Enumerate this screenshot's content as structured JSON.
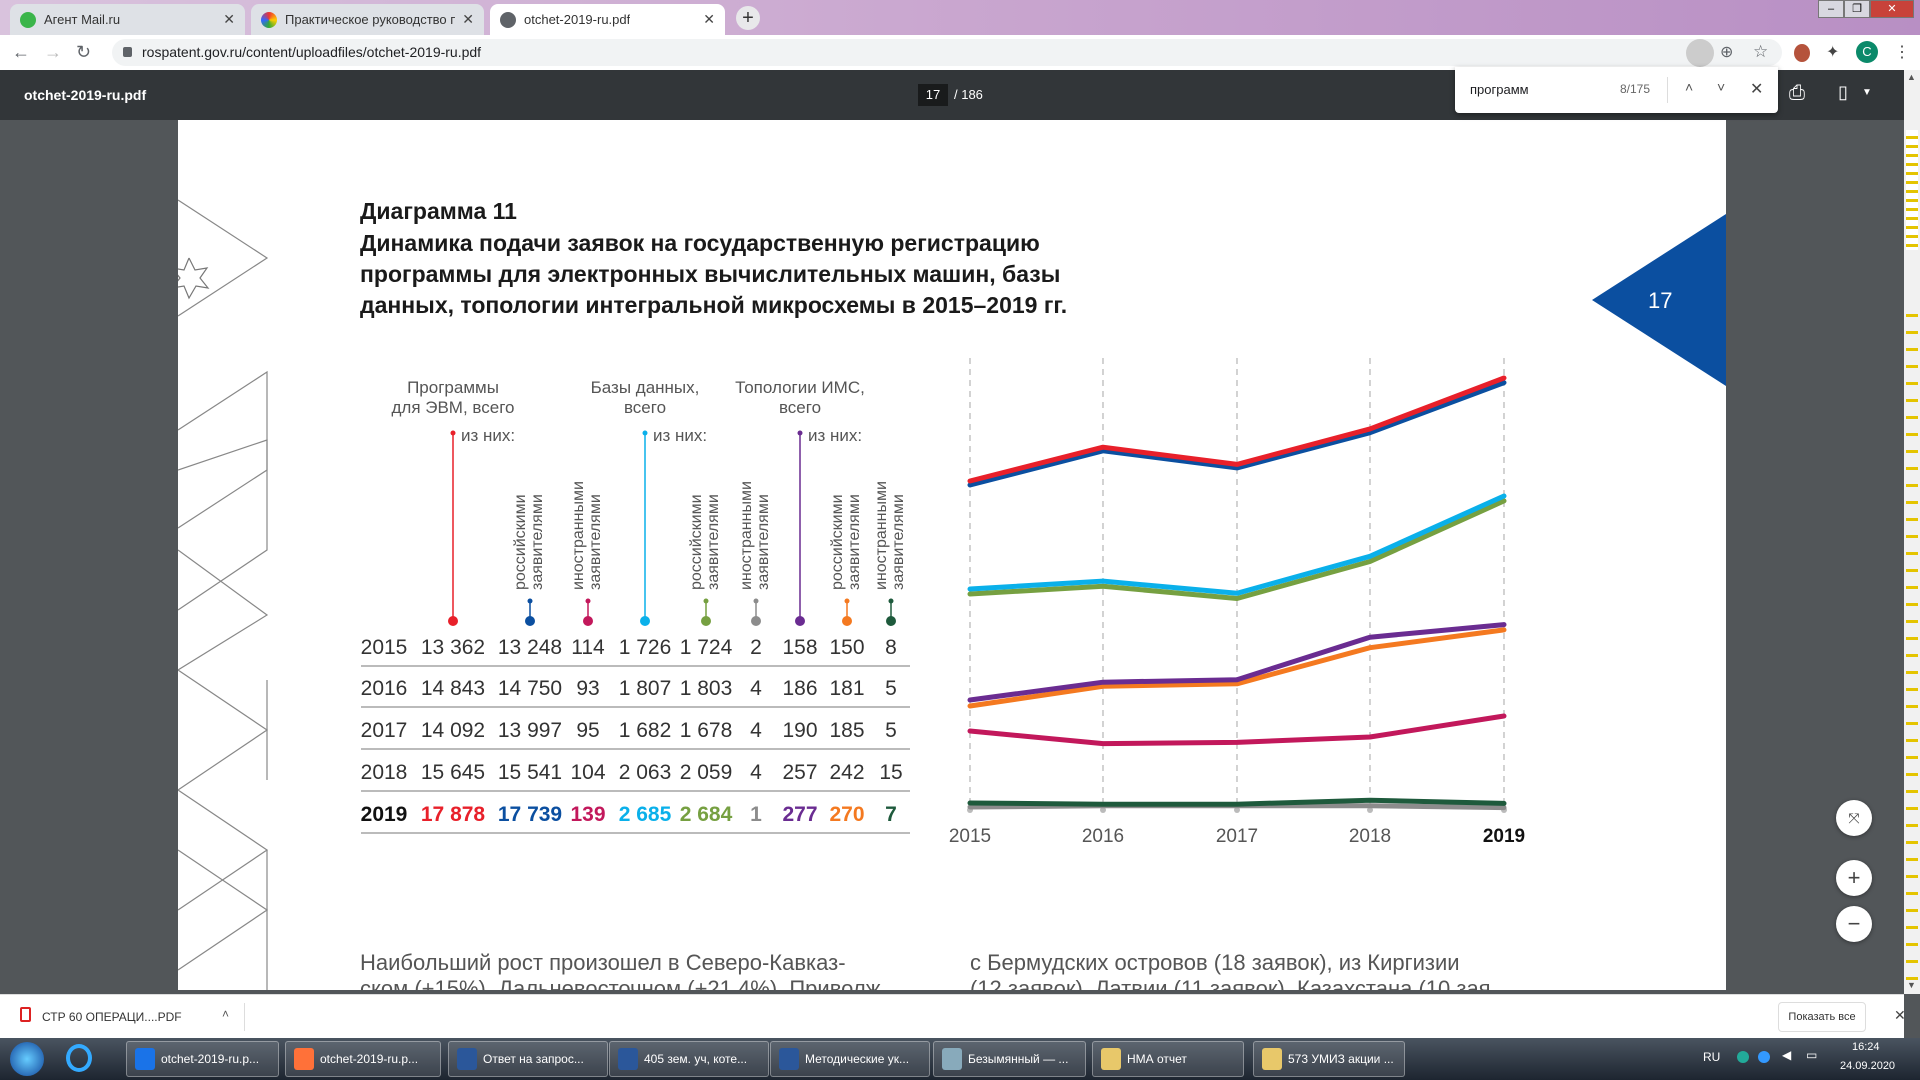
{
  "browser": {
    "tabs": [
      {
        "label": "Агент Mail.ru",
        "icon": "mail-agent-icon"
      },
      {
        "label": "Практическое руководство по г",
        "icon": "app-icon"
      },
      {
        "label": "otchet-2019-ru.pdf",
        "icon": "globe-icon",
        "active": true
      }
    ],
    "new_tab": "+",
    "url": "rospatent.gov.ru/content/uploadfiles/otchet-2019-ru.pdf",
    "profile_letter": "C"
  },
  "pdf_toolbar": {
    "filename": "otchet-2019-ru.pdf",
    "current_page": "17",
    "total_pages": "/ 186"
  },
  "find": {
    "query": "программ",
    "count": "8/175"
  },
  "page": {
    "page_number": "17",
    "title_lines": [
      "Диаграмма 11",
      "Динамика подачи заявок на государственную регистрацию",
      "программы для электронных вычислительных машин, базы",
      "данных, топологии интегральной микросхемы в 2015–2019 гг."
    ],
    "groups": [
      {
        "line1": "Программы",
        "line2": "для ЭВМ, всего",
        "sub": "из них:"
      },
      {
        "line1": "Базы данных,",
        "line2": "всего",
        "sub": "из них:"
      },
      {
        "line1": "Топологии ИМС,",
        "line2": "всего",
        "sub": "из них:"
      }
    ],
    "sublabels": {
      "ru1": "российскими",
      "ru2": "заявителями",
      "fo1": "иностранными",
      "fo2": "заявителями"
    },
    "body_left": "Наибольший рост произошел в Северо-Кавказ-",
    "body_left_2": "ском (+15%). Дальневосточном (+21,4%). Приволж",
    "body_right": "с Бермудских островов (18 заявок), из Киргизии",
    "body_right_2": "(12 заявок), Латвии (11 заявок), Казахстана (10 зая"
  },
  "table": {
    "colors": [
      "#e8202a",
      "#0b4fa0",
      "#c2185b",
      "#0ab0ea",
      "#76a041",
      "#8c8c8c",
      "#6a2c91",
      "#f47920",
      "#1e5a3c"
    ],
    "rows": [
      {
        "year": "2015",
        "cells": [
          "13 362",
          "13 248",
          "114",
          "1 726",
          "1 724",
          "2",
          "158",
          "150",
          "8"
        ]
      },
      {
        "year": "2016",
        "cells": [
          "14 843",
          "14 750",
          "93",
          "1 807",
          "1 803",
          "4",
          "186",
          "181",
          "5"
        ]
      },
      {
        "year": "2017",
        "cells": [
          "14 092",
          "13 997",
          "95",
          "1 682",
          "1 678",
          "4",
          "190",
          "185",
          "5"
        ]
      },
      {
        "year": "2018",
        "cells": [
          "15 645",
          "15 541",
          "104",
          "2 063",
          "2 059",
          "4",
          "257",
          "242",
          "15"
        ]
      },
      {
        "year": "2019",
        "cells": [
          "17 878",
          "17 739",
          "139",
          "2 685",
          "2 684",
          "1",
          "277",
          "270",
          "7"
        ]
      }
    ]
  },
  "chart_data": {
    "type": "line",
    "title": "Диаграмма 11",
    "categories": [
      "2015",
      "2016",
      "2017",
      "2018",
      "2019"
    ],
    "grid": "vertical dashed",
    "series": [
      {
        "name": "Программы для ЭВМ, всего",
        "color": "#e8202a",
        "values": [
          13362,
          14843,
          14092,
          15645,
          17878
        ]
      },
      {
        "name": "Программы — российскими заявителями",
        "color": "#0b4fa0",
        "values": [
          13248,
          14750,
          13997,
          15541,
          17739
        ]
      },
      {
        "name": "Программы — иностранными заявителями",
        "color": "#c2185b",
        "values": [
          114,
          93,
          95,
          104,
          139
        ]
      },
      {
        "name": "Базы данных, всего",
        "color": "#0ab0ea",
        "values": [
          1726,
          1807,
          1682,
          2063,
          2685
        ]
      },
      {
        "name": "Базы данных — российскими заявителями",
        "color": "#76a041",
        "values": [
          1724,
          1803,
          1678,
          2059,
          2684
        ]
      },
      {
        "name": "Базы данных — иностранными заявителями",
        "color": "#8c8c8c",
        "values": [
          2,
          4,
          4,
          4,
          1
        ]
      },
      {
        "name": "Топологии ИМС, всего",
        "color": "#6a2c91",
        "values": [
          158,
          186,
          190,
          257,
          277
        ]
      },
      {
        "name": "Топологии — российскими заявителями",
        "color": "#f47920",
        "values": [
          150,
          181,
          185,
          242,
          270
        ]
      },
      {
        "name": "Топологии — иностранными заявителями",
        "color": "#1e5a3c",
        "values": [
          8,
          5,
          5,
          15,
          7
        ]
      }
    ]
  },
  "downloads": {
    "file": "СТР 60 ОПЕРАЦИ....PDF",
    "show_all": "Показать все"
  },
  "taskbar": {
    "items": [
      "otchet-2019-ru.p...",
      "otchet-2019-ru.p...",
      "Ответ на запрос...",
      "405 зем. уч, коте...",
      "Методические ук...",
      "Безымянный — ...",
      "НМА отчет",
      "573 УМИЗ акции ..."
    ],
    "lang": "RU",
    "time": "16:24",
    "date": "24.09.2020"
  }
}
